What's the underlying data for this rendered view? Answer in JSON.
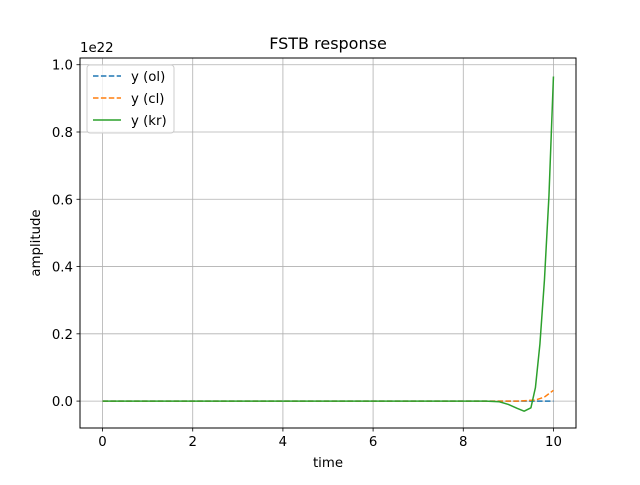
{
  "chart_data": {
    "type": "line",
    "title": "FSTB response",
    "xlabel": "time",
    "ylabel": "amplitude",
    "y_scale_label": "1e22",
    "y_multiplier": 1e+22,
    "xlim": [
      -0.5,
      10.5
    ],
    "ylim": [
      -0.08,
      1.02
    ],
    "xticks": [
      0,
      2,
      4,
      6,
      8,
      10
    ],
    "xtick_labels": [
      "0",
      "2",
      "4",
      "6",
      "8",
      "10"
    ],
    "yticks": [
      0.0,
      0.2,
      0.4,
      0.6,
      0.8,
      1.0
    ],
    "ytick_labels": [
      "0.0",
      "0.2",
      "0.4",
      "0.6",
      "0.8",
      "1.0"
    ],
    "grid": true,
    "legend_position": "upper left",
    "series": [
      {
        "name": "y (ol)",
        "color": "#1f77b4",
        "style": "dashed",
        "x": [
          0,
          1,
          2,
          3,
          4,
          5,
          6,
          7,
          8,
          9,
          9.5,
          10
        ],
        "y": [
          0,
          0,
          0,
          0,
          0,
          0,
          0,
          0,
          0,
          0,
          0,
          0
        ]
      },
      {
        "name": "y (cl)",
        "color": "#ff7f0e",
        "style": "dashed",
        "x": [
          0,
          1,
          2,
          3,
          4,
          5,
          6,
          7,
          8,
          8.8,
          9.2,
          9.6,
          9.8,
          10
        ],
        "y": [
          0,
          0,
          0,
          0,
          0,
          0,
          0,
          0,
          0,
          0,
          0,
          0.003,
          0.012,
          0.032
        ]
      },
      {
        "name": "y (kr)",
        "color": "#2ca02c",
        "style": "solid",
        "x": [
          0,
          1,
          2,
          3,
          4,
          5,
          6,
          7,
          8,
          8.5,
          8.8,
          9.0,
          9.2,
          9.35,
          9.5,
          9.6,
          9.7,
          9.8,
          9.9,
          10
        ],
        "y": [
          0,
          0,
          0,
          0,
          0,
          0,
          0,
          0,
          0,
          0,
          -0.002,
          -0.01,
          -0.022,
          -0.03,
          -0.02,
          0.04,
          0.17,
          0.36,
          0.61,
          0.965
        ]
      }
    ]
  }
}
